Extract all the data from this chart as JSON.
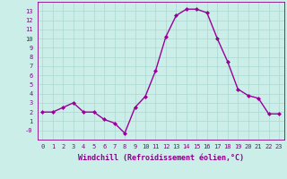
{
  "x": [
    0,
    1,
    2,
    3,
    4,
    5,
    6,
    7,
    8,
    9,
    10,
    11,
    12,
    13,
    14,
    15,
    16,
    17,
    18,
    19,
    20,
    21,
    22,
    23
  ],
  "y": [
    2,
    2,
    2.5,
    3,
    2,
    2,
    1.2,
    0.8,
    -0.3,
    2.5,
    3.7,
    6.5,
    10.2,
    12.5,
    13.2,
    13.2,
    12.8,
    10.0,
    7.5,
    4.5,
    3.8,
    3.5,
    1.8,
    1.8
  ],
  "line_color": "#990099",
  "marker": "D",
  "marker_size": 2,
  "bg_color": "#cceee8",
  "grid_color": "#aad8d0",
  "xlabel": "Windchill (Refroidissement éolien,°C)",
  "xlim": [
    -0.5,
    23.5
  ],
  "ylim": [
    -1,
    14
  ],
  "xticks": [
    0,
    1,
    2,
    3,
    4,
    5,
    6,
    7,
    8,
    9,
    10,
    11,
    12,
    13,
    14,
    15,
    16,
    17,
    18,
    19,
    20,
    21,
    22,
    23
  ],
  "yticks": [
    0,
    1,
    2,
    3,
    4,
    5,
    6,
    7,
    8,
    9,
    10,
    11,
    12,
    13
  ],
  "ytick_labels": [
    "-0",
    "1",
    "2",
    "3",
    "4",
    "5",
    "6",
    "7",
    "8",
    "9",
    "10",
    "11",
    "12",
    "13"
  ],
  "tick_label_color": "#880088",
  "tick_fontsize": 5.0,
  "xlabel_fontsize": 6.0,
  "spine_color": "#880088",
  "line_width": 1.0
}
